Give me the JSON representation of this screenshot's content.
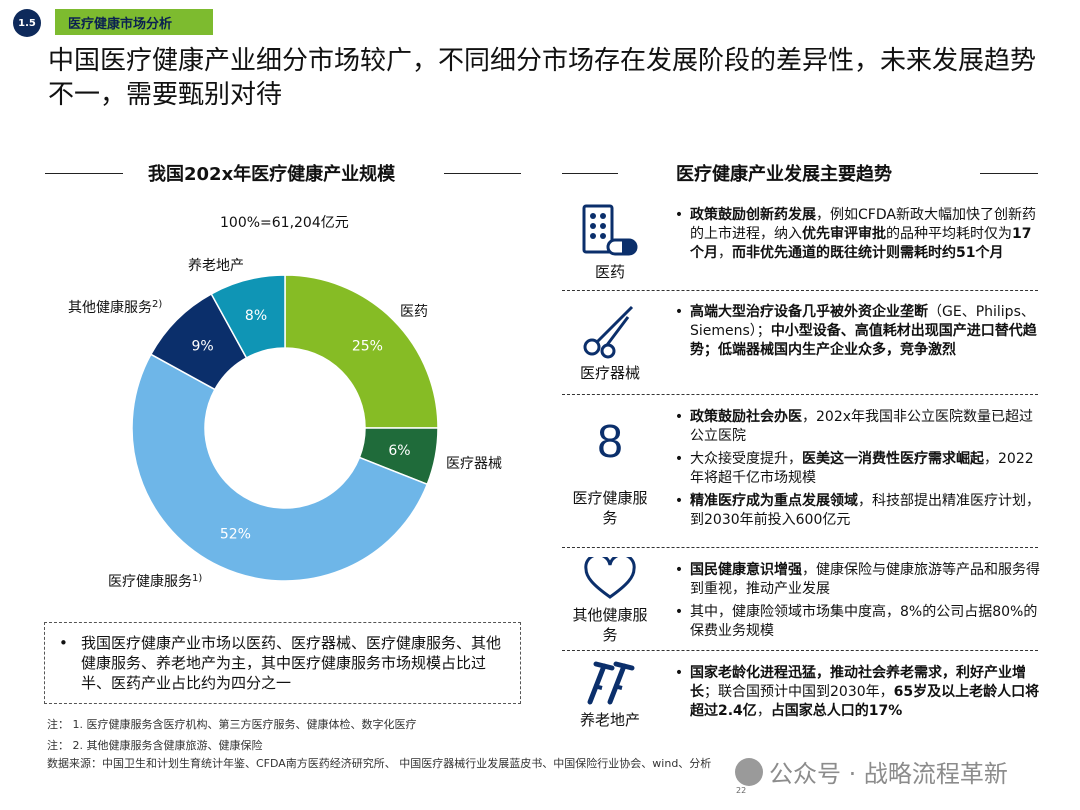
{
  "header": {
    "section_number": "1.5",
    "section_label": "医疗健康市场分析",
    "headline": "中国医疗健康产业细分市场较广，不同细分市场存在发展阶段的差异性，未来发展趋势不一，需要甄别对待"
  },
  "chart_data": {
    "type": "pie",
    "donut": true,
    "title": "我国202x年医疗健康产业规模",
    "total_label": "100%=61,204亿元",
    "slices": [
      {
        "label": "医药",
        "value": 25,
        "value_label": "25%",
        "color": "#86bc25"
      },
      {
        "label": "医疗器械",
        "value": 6,
        "value_label": "6%",
        "color": "#1f6b3a"
      },
      {
        "label": "医疗健康服务",
        "label_sup": "1)",
        "value": 52,
        "value_label": "52%",
        "color": "#6eb6e8"
      },
      {
        "label": "其他健康服务",
        "label_sup": "2)",
        "value": 9,
        "value_label": "9%",
        "color": "#0b2f6b"
      },
      {
        "label": "养老地产",
        "value": 8,
        "value_label": "8%",
        "color": "#0f95b5"
      }
    ]
  },
  "summary": {
    "bullet": "•",
    "text": "我国医疗健康产业市场以医药、医疗器械、医疗健康服务、其他健康服务、养老地产为主，其中医疗健康服务市场规模占比过半、医药产业占比约为四分之一"
  },
  "notes": {
    "note1": "注：  1. 医疗健康服务含医疗机构、第三方医疗服务、健康体检、数字化医疗",
    "note2": "注：  2. 其他健康服务含健康旅游、健康保险",
    "source": "数据来源：中国卫生和计划生育统计年鉴、CFDA南方医药经济研究所、 中国医疗器械行业发展蓝皮书、中国保险行业协会、wind、分析"
  },
  "trends": {
    "title": "医疗健康产业发展主要趋势",
    "rows": [
      {
        "name": "医药",
        "icon": "medicine-icon",
        "bullets": [
          {
            "parts": [
              [
                "b",
                "政策鼓励创新药发展"
              ],
              [
                "n",
                "，例如CFDA新政大幅加快了创新药的上市进程，纳入"
              ],
              [
                "b",
                "优先审评审批"
              ],
              [
                "n",
                "的品种平均耗时仅为"
              ],
              [
                "b",
                "17个月"
              ],
              [
                "n",
                "，"
              ],
              [
                "b",
                "而非优先通道的既往统计则需耗时约51个月"
              ]
            ]
          }
        ]
      },
      {
        "name": "医疗器械",
        "icon": "scissors-icon",
        "bullets": [
          {
            "parts": [
              [
                "b",
                "高端大型治疗设备几乎被外资企业垄断"
              ],
              [
                "n",
                "（GE、Philips、Siemens）；"
              ],
              [
                "b",
                "中小型设备、高值耗材出现国产进口替代趋势；低端器械国内生产企业众多，竞争激烈"
              ]
            ]
          }
        ]
      },
      {
        "name": "医疗健康服务",
        "icon": "health-service-icon",
        "icon_glyph": "8",
        "bullets": [
          {
            "parts": [
              [
                "b",
                "政策鼓励社会办医"
              ],
              [
                "n",
                "，202x年我国非公立医院数量已超过公立医院"
              ]
            ]
          },
          {
            "parts": [
              [
                "n",
                "大众接受度提升，"
              ],
              [
                "b",
                "医美这一消费性医疗需求崛起"
              ],
              [
                "n",
                "，2022年将超千亿市场规模"
              ]
            ]
          },
          {
            "parts": [
              [
                "b",
                "精准医疗成为重点发展领域"
              ],
              [
                "n",
                "，科技部提出精准医疗计划，到2030年前投入600亿元"
              ]
            ]
          }
        ]
      },
      {
        "name": "其他健康服务",
        "icon": "heart-icon",
        "bullets": [
          {
            "parts": [
              [
                "b",
                "国民健康意识增强"
              ],
              [
                "n",
                "，健康保险与健康旅游等产品和服务得到重视，推动产业发展"
              ]
            ]
          },
          {
            "parts": [
              [
                "n",
                "其中，健康险领域市场集中度高，8%的公司占据80%的保费业务规模"
              ]
            ]
          }
        ]
      },
      {
        "name": "养老地产",
        "icon": "crutches-icon",
        "bullets": [
          {
            "parts": [
              [
                "b",
                "国家老龄化进程迅猛，推动社会养老需求，利好产业增长"
              ],
              [
                "n",
                "；联合国预计中国到2030年，"
              ],
              [
                "b",
                "65岁及以上老龄人口将超过2.4亿"
              ],
              [
                "n",
                "，"
              ],
              [
                "b",
                "占国家总人口的17%"
              ]
            ]
          }
        ]
      }
    ]
  },
  "footer": {
    "page_number": "22",
    "watermark": "公众号 · 战略流程革新"
  }
}
